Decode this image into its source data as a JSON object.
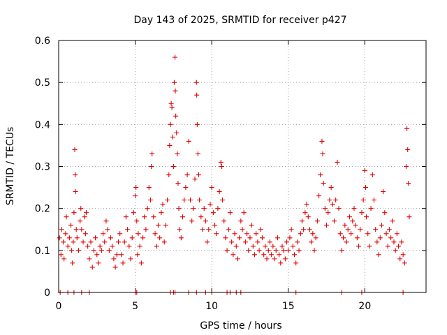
{
  "chart_data": {
    "type": "scatter",
    "title": "Day 143 of 2025, SRMTID for receiver p427",
    "xlabel": "GPS time / hours",
    "ylabel": "SRMTID / TECUs",
    "xlim": [
      0,
      24
    ],
    "ylim": [
      0,
      0.6
    ],
    "x_ticks": [
      0,
      5,
      10,
      15,
      20
    ],
    "x_tick_labels": [
      "0",
      "5",
      "10",
      "15",
      "20"
    ],
    "y_ticks": [
      0,
      0.1,
      0.2,
      0.3,
      0.4,
      0.5,
      0.6
    ],
    "y_tick_labels": [
      "0",
      "0.1",
      "0.2",
      "0.3",
      "0.4",
      "0.5",
      "0.6"
    ],
    "grid": true,
    "marker": "+",
    "color": "#e00000",
    "series": [
      {
        "name": "SRMTID",
        "points": [
          [
            0.05,
            0.13
          ],
          [
            0.15,
            0.09
          ],
          [
            0.2,
            0.15
          ],
          [
            0.3,
            0.12
          ],
          [
            0.35,
            0.08
          ],
          [
            0.45,
            0.14
          ],
          [
            0.5,
            0.18
          ],
          [
            0.6,
            0.11
          ],
          [
            0.7,
            0.13
          ],
          [
            0.8,
            0.16
          ],
          [
            0.85,
            0.1
          ],
          [
            0.9,
            0.07
          ],
          [
            0.95,
            0.12
          ],
          [
            1.0,
            0.19
          ],
          [
            1.05,
            0.34
          ],
          [
            1.08,
            0.28
          ],
          [
            1.1,
            0.24
          ],
          [
            1.15,
            0.15
          ],
          [
            1.2,
            0.13
          ],
          [
            1.3,
            0.1
          ],
          [
            1.4,
            0.17
          ],
          [
            1.45,
            0.2
          ],
          [
            1.5,
            0.15
          ],
          [
            1.6,
            0.12
          ],
          [
            1.7,
            0.18
          ],
          [
            1.75,
            0.14
          ],
          [
            1.8,
            0.19
          ],
          [
            1.9,
            0.11
          ],
          [
            2.0,
            0.08
          ],
          [
            2.1,
            0.12
          ],
          [
            2.2,
            0.06
          ],
          [
            2.3,
            0.1
          ],
          [
            2.4,
            0.13
          ],
          [
            2.5,
            0.09
          ],
          [
            2.6,
            0.07
          ],
          [
            2.7,
            0.11
          ],
          [
            2.8,
            0.1
          ],
          [
            2.9,
            0.14
          ],
          [
            3.0,
            0.12
          ],
          [
            3.1,
            0.17
          ],
          [
            3.2,
            0.15
          ],
          [
            3.3,
            0.1
          ],
          [
            3.4,
            0.13
          ],
          [
            3.5,
            0.11
          ],
          [
            3.6,
            0.08
          ],
          [
            3.7,
            0.06
          ],
          [
            3.8,
            0.09
          ],
          [
            3.9,
            0.12
          ],
          [
            4.0,
            0.14
          ],
          [
            4.1,
            0.09
          ],
          [
            4.2,
            0.07
          ],
          [
            4.3,
            0.12
          ],
          [
            4.4,
            0.18
          ],
          [
            4.5,
            0.15
          ],
          [
            4.6,
            0.11
          ],
          [
            4.7,
            0.08
          ],
          [
            4.8,
            0.13
          ],
          [
            4.9,
            0.19
          ],
          [
            5.0,
            0.23
          ],
          [
            5.05,
            0.25
          ],
          [
            5.1,
            0.17
          ],
          [
            5.15,
            0.09
          ],
          [
            5.2,
            0.14
          ],
          [
            5.3,
            0.11
          ],
          [
            5.4,
            0.07
          ],
          [
            5.5,
            0.13
          ],
          [
            5.6,
            0.18
          ],
          [
            5.7,
            0.15
          ],
          [
            5.8,
            0.2
          ],
          [
            5.9,
            0.25
          ],
          [
            6.0,
            0.22
          ],
          [
            6.05,
            0.3
          ],
          [
            6.1,
            0.33
          ],
          [
            6.2,
            0.18
          ],
          [
            6.3,
            0.14
          ],
          [
            6.4,
            0.11
          ],
          [
            6.5,
            0.16
          ],
          [
            6.6,
            0.13
          ],
          [
            6.7,
            0.19
          ],
          [
            6.8,
            0.21
          ],
          [
            6.9,
            0.12
          ],
          [
            7.0,
            0.16
          ],
          [
            7.1,
            0.22
          ],
          [
            7.2,
            0.28
          ],
          [
            7.25,
            0.35
          ],
          [
            7.3,
            0.4
          ],
          [
            7.35,
            0.45
          ],
          [
            7.4,
            0.44
          ],
          [
            7.45,
            0.37
          ],
          [
            7.5,
            0.3
          ],
          [
            7.55,
            0.5
          ],
          [
            7.6,
            0.56
          ],
          [
            7.62,
            0.48
          ],
          [
            7.65,
            0.42
          ],
          [
            7.7,
            0.38
          ],
          [
            7.75,
            0.33
          ],
          [
            7.8,
            0.26
          ],
          [
            7.85,
            0.2
          ],
          [
            7.9,
            0.15
          ],
          [
            8.0,
            0.13
          ],
          [
            8.1,
            0.18
          ],
          [
            8.2,
            0.22
          ],
          [
            8.3,
            0.25
          ],
          [
            8.4,
            0.28
          ],
          [
            8.5,
            0.36
          ],
          [
            8.6,
            0.22
          ],
          [
            8.7,
            0.17
          ],
          [
            8.8,
            0.2
          ],
          [
            8.9,
            0.27
          ],
          [
            9.0,
            0.5
          ],
          [
            9.02,
            0.47
          ],
          [
            9.05,
            0.4
          ],
          [
            9.1,
            0.33
          ],
          [
            9.15,
            0.28
          ],
          [
            9.2,
            0.22
          ],
          [
            9.3,
            0.18
          ],
          [
            9.4,
            0.15
          ],
          [
            9.5,
            0.2
          ],
          [
            9.6,
            0.17
          ],
          [
            9.7,
            0.12
          ],
          [
            9.8,
            0.15
          ],
          [
            9.9,
            0.21
          ],
          [
            10.0,
            0.25
          ],
          [
            10.1,
            0.19
          ],
          [
            10.2,
            0.16
          ],
          [
            10.3,
            0.14
          ],
          [
            10.4,
            0.2
          ],
          [
            10.5,
            0.24
          ],
          [
            10.6,
            0.31
          ],
          [
            10.65,
            0.3
          ],
          [
            10.7,
            0.22
          ],
          [
            10.8,
            0.17
          ],
          [
            10.9,
            0.13
          ],
          [
            11.0,
            0.1
          ],
          [
            11.1,
            0.15
          ],
          [
            11.2,
            0.19
          ],
          [
            11.3,
            0.12
          ],
          [
            11.4,
            0.09
          ],
          [
            11.5,
            0.14
          ],
          [
            11.6,
            0.11
          ],
          [
            11.7,
            0.08
          ],
          [
            11.8,
            0.13
          ],
          [
            11.9,
            0.17
          ],
          [
            12.0,
            0.15
          ],
          [
            12.1,
            0.19
          ],
          [
            12.2,
            0.12
          ],
          [
            12.3,
            0.14
          ],
          [
            12.4,
            0.1
          ],
          [
            12.5,
            0.13
          ],
          [
            12.6,
            0.16
          ],
          [
            12.7,
            0.11
          ],
          [
            12.8,
            0.09
          ],
          [
            12.9,
            0.14
          ],
          [
            13.0,
            0.12
          ],
          [
            13.1,
            0.1
          ],
          [
            13.2,
            0.15
          ],
          [
            13.3,
            0.13
          ],
          [
            13.4,
            0.09
          ],
          [
            13.5,
            0.11
          ],
          [
            13.6,
            0.08
          ],
          [
            13.7,
            0.1
          ],
          [
            13.8,
            0.12
          ],
          [
            13.9,
            0.09
          ],
          [
            14.0,
            0.11
          ],
          [
            14.1,
            0.08
          ],
          [
            14.2,
            0.1
          ],
          [
            14.3,
            0.13
          ],
          [
            14.4,
            0.09
          ],
          [
            14.5,
            0.07
          ],
          [
            14.6,
            0.11
          ],
          [
            14.7,
            0.1
          ],
          [
            14.8,
            0.08
          ],
          [
            14.9,
            0.12
          ],
          [
            15.0,
            0.1
          ],
          [
            15.1,
            0.13
          ],
          [
            15.2,
            0.15
          ],
          [
            15.3,
            0.11
          ],
          [
            15.4,
            0.09
          ],
          [
            15.5,
            0.07
          ],
          [
            15.6,
            0.12
          ],
          [
            15.7,
            0.1
          ],
          [
            15.8,
            0.14
          ],
          [
            15.9,
            0.17
          ],
          [
            16.0,
            0.15
          ],
          [
            16.1,
            0.19
          ],
          [
            16.2,
            0.21
          ],
          [
            16.3,
            0.18
          ],
          [
            16.4,
            0.15
          ],
          [
            16.5,
            0.12
          ],
          [
            16.6,
            0.14
          ],
          [
            16.7,
            0.1
          ],
          [
            16.8,
            0.13
          ],
          [
            16.9,
            0.17
          ],
          [
            17.0,
            0.23
          ],
          [
            17.1,
            0.28
          ],
          [
            17.2,
            0.36
          ],
          [
            17.25,
            0.33
          ],
          [
            17.3,
            0.26
          ],
          [
            17.4,
            0.2
          ],
          [
            17.5,
            0.16
          ],
          [
            17.6,
            0.19
          ],
          [
            17.7,
            0.22
          ],
          [
            17.8,
            0.25
          ],
          [
            17.9,
            0.21
          ],
          [
            18.0,
            0.17
          ],
          [
            18.1,
            0.22
          ],
          [
            18.2,
            0.31
          ],
          [
            18.3,
            0.2
          ],
          [
            18.4,
            0.14
          ],
          [
            18.5,
            0.1
          ],
          [
            18.6,
            0.13
          ],
          [
            18.7,
            0.16
          ],
          [
            18.8,
            0.12
          ],
          [
            18.9,
            0.15
          ],
          [
            19.0,
            0.18
          ],
          [
            19.1,
            0.14
          ],
          [
            19.2,
            0.17
          ],
          [
            19.3,
            0.2
          ],
          [
            19.4,
            0.16
          ],
          [
            19.5,
            0.13
          ],
          [
            19.6,
            0.11
          ],
          [
            19.7,
            0.15
          ],
          [
            19.8,
            0.19
          ],
          [
            19.9,
            0.22
          ],
          [
            20.0,
            0.29
          ],
          [
            20.05,
            0.25
          ],
          [
            20.1,
            0.18
          ],
          [
            20.2,
            0.14
          ],
          [
            20.3,
            0.11
          ],
          [
            20.4,
            0.2
          ],
          [
            20.5,
            0.28
          ],
          [
            20.6,
            0.22
          ],
          [
            20.7,
            0.15
          ],
          [
            20.8,
            0.12
          ],
          [
            20.9,
            0.09
          ],
          [
            21.0,
            0.13
          ],
          [
            21.1,
            0.16
          ],
          [
            21.2,
            0.24
          ],
          [
            21.3,
            0.19
          ],
          [
            21.4,
            0.14
          ],
          [
            21.5,
            0.11
          ],
          [
            21.6,
            0.15
          ],
          [
            21.7,
            0.13
          ],
          [
            21.8,
            0.17
          ],
          [
            21.9,
            0.12
          ],
          [
            22.0,
            0.1
          ],
          [
            22.1,
            0.14
          ],
          [
            22.2,
            0.11
          ],
          [
            22.3,
            0.08
          ],
          [
            22.4,
            0.12
          ],
          [
            22.5,
            0.09
          ],
          [
            22.6,
            0.07
          ],
          [
            22.7,
            0.3
          ],
          [
            22.75,
            0.39
          ],
          [
            22.8,
            0.34
          ],
          [
            22.85,
            0.26
          ],
          [
            22.9,
            0.18
          ]
        ]
      }
    ],
    "baseline_x": [
      0.1,
      0.6,
      1.0,
      1.5,
      2.0,
      5.0,
      5.1,
      7.3,
      7.5,
      7.6,
      8.5,
      9.0,
      9.6,
      10.0,
      11.0,
      11.2,
      11.6,
      11.9,
      15.5,
      18.5,
      19.8,
      22.5
    ]
  }
}
